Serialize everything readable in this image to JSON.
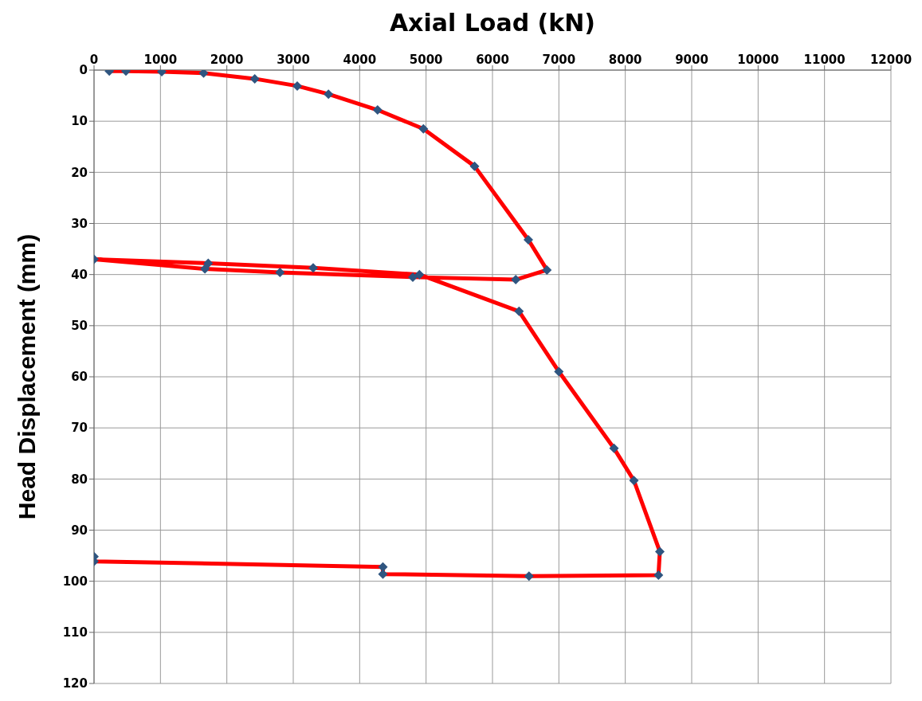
{
  "chart_data": {
    "type": "line",
    "xlabel": "Axial Load (kN)",
    "ylabel": "Head Displacement (mm)",
    "series": [
      {
        "color": "#ff0000",
        "x": [
          230,
          480,
          1020,
          1650,
          2420,
          3060,
          3530,
          4270,
          4960,
          5730,
          6540,
          6820,
          6350,
          4800,
          2800,
          1670,
          0,
          1720,
          3300,
          4900,
          6400,
          7000,
          7830,
          8130,
          8520,
          8500,
          6550,
          4350,
          4350,
          0,
          0
        ],
        "values": [
          0.2,
          0.2,
          0.3,
          0.6,
          1.7,
          3.1,
          4.7,
          7.8,
          11.5,
          18.8,
          33.2,
          39.1,
          41,
          40.5,
          39.6,
          38.9,
          37,
          37.8,
          38.7,
          40,
          47.2,
          59,
          74,
          80.3,
          94.2,
          98.8,
          99,
          98.6,
          97.2,
          96.1,
          95.2
        ]
      }
    ],
    "xlim": [
      0,
      12000
    ],
    "xticks": [
      0,
      1000,
      2000,
      3000,
      4000,
      5000,
      6000,
      7000,
      8000,
      9000,
      10000,
      11000,
      12000
    ],
    "ylim": [
      120,
      0
    ],
    "yticks": [
      0,
      10,
      20,
      30,
      40,
      50,
      60,
      70,
      80,
      90,
      100,
      110,
      120
    ],
    "grid": true,
    "legend": false,
    "marker": "diamond",
    "line_style": "solid"
  }
}
